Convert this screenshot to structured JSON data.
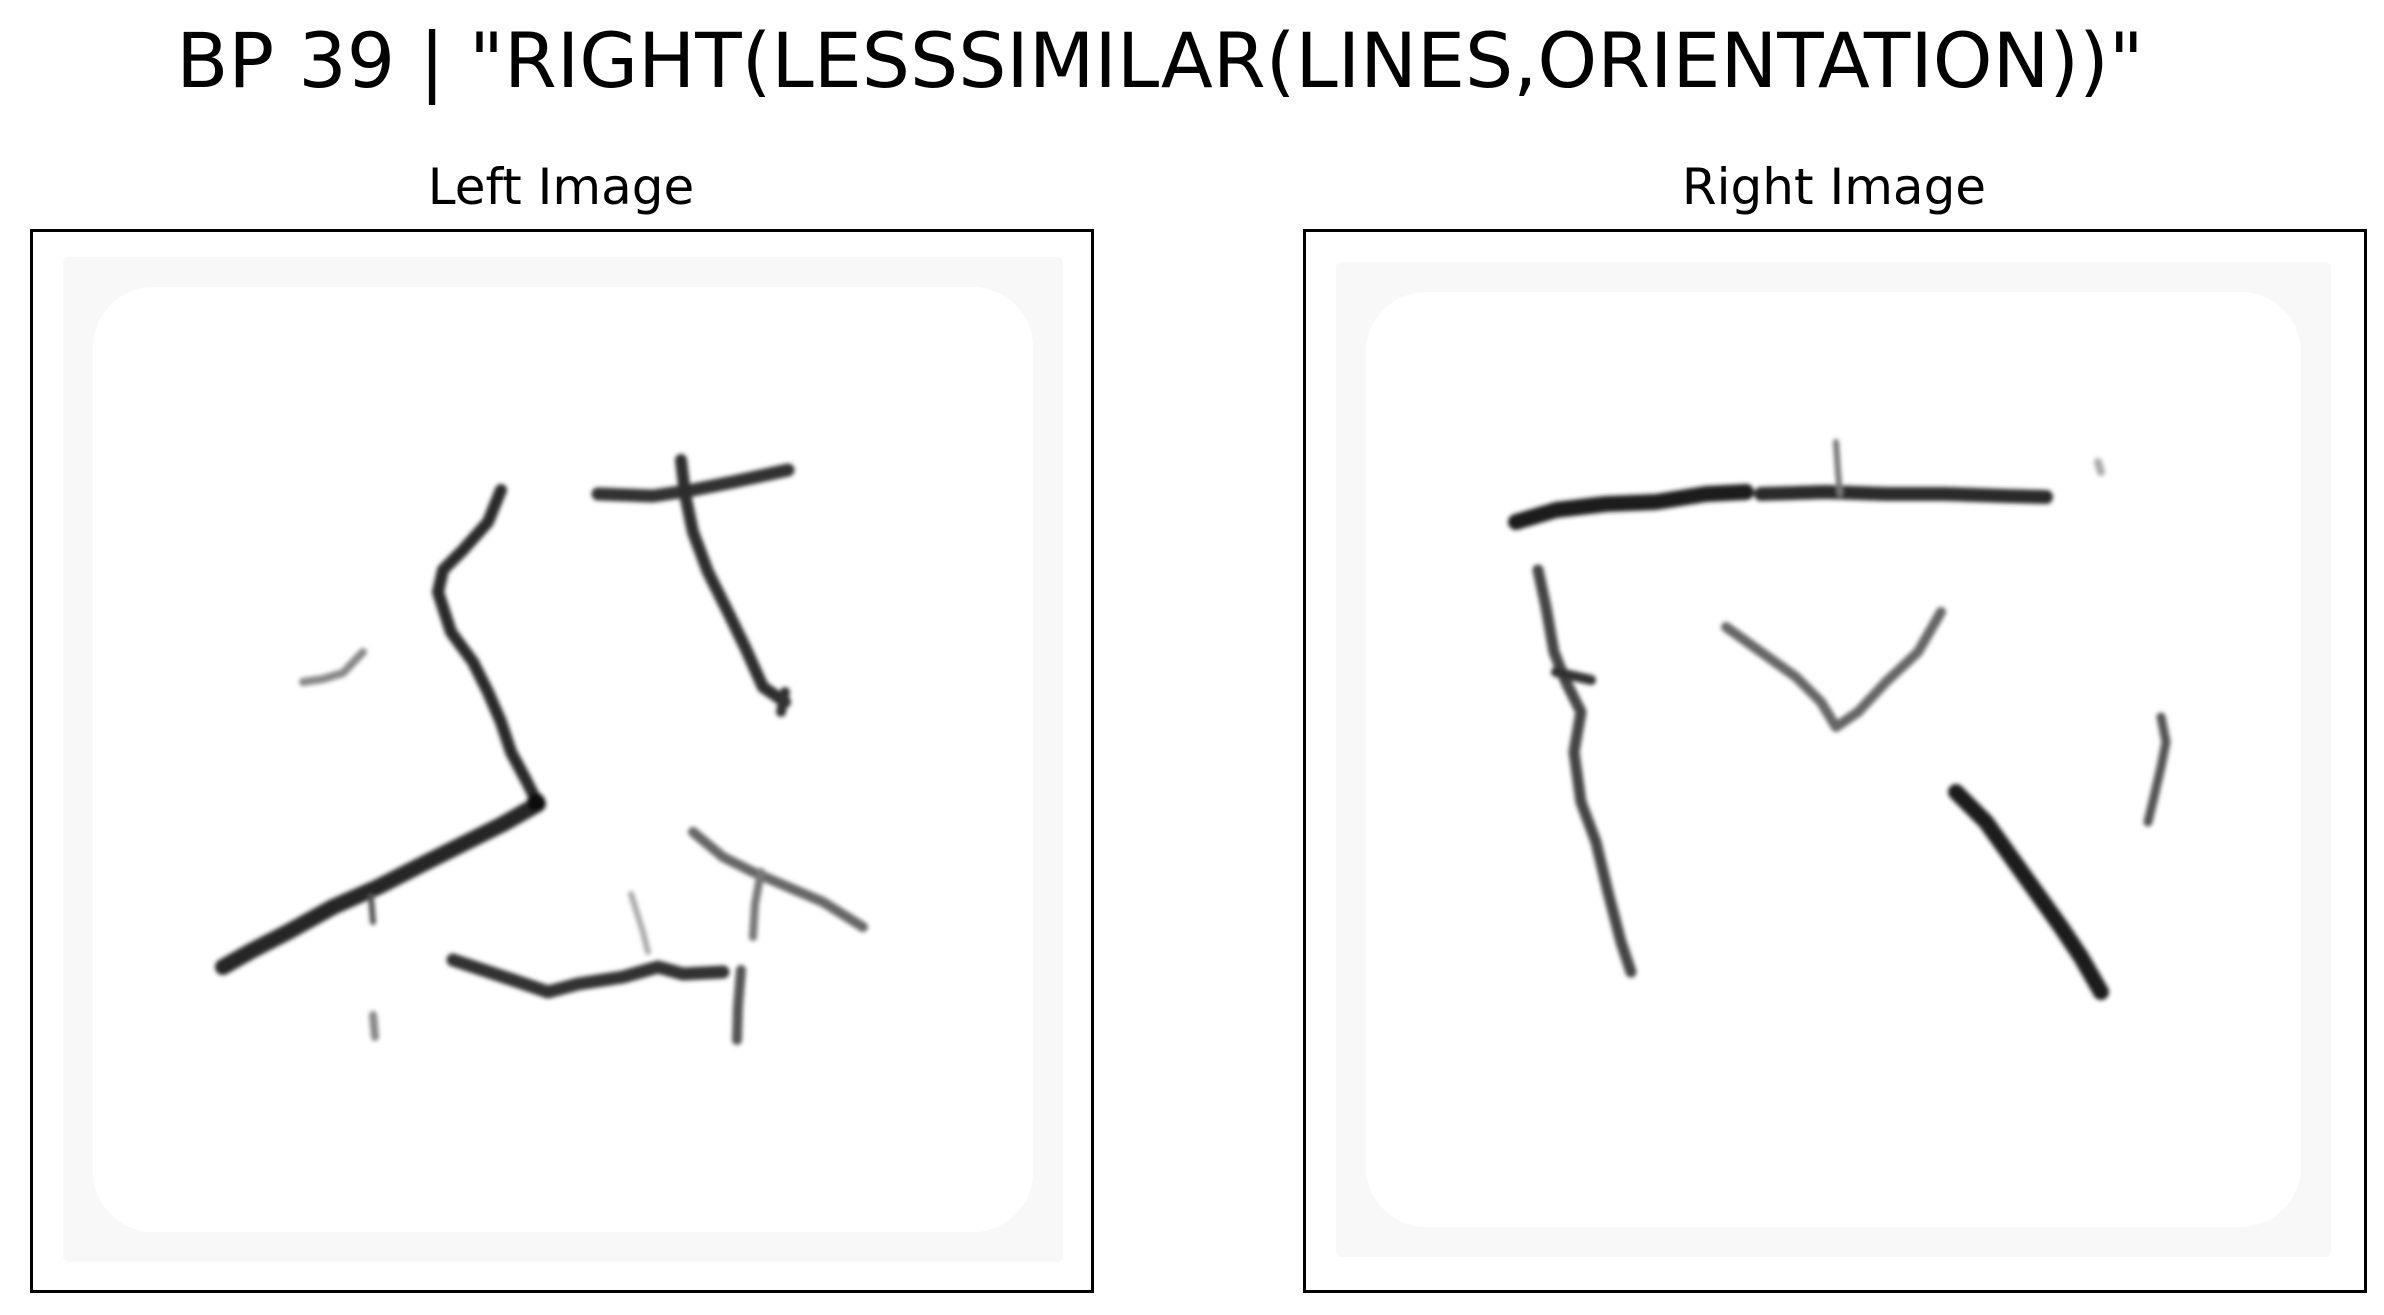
{
  "title": "BP 39 | \"RIGHT(LESSSIMILAR(LINES,ORIENTATION))\"",
  "panels": {
    "left": {
      "title": "Left Image"
    },
    "right": {
      "title": "Right Image"
    }
  },
  "colors": {
    "background": "#ffffff",
    "frame": "#000000",
    "stroke": "#1a1a1a",
    "canvas_tint": "#f7f7f7"
  }
}
